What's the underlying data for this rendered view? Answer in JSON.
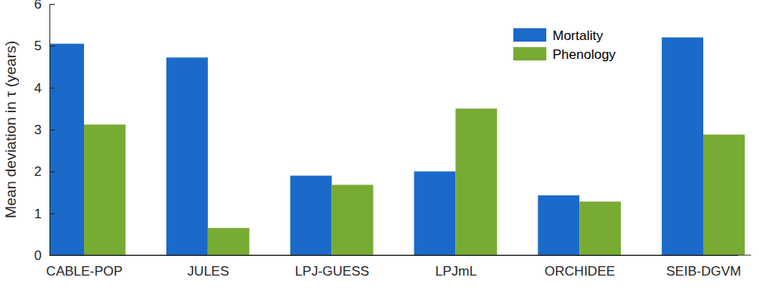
{
  "chart_data": {
    "type": "bar",
    "categories": [
      "CABLE-POP",
      "JULES",
      "LPJ-GUESS",
      "LPJmL",
      "ORCHIDEE",
      "SEIB-DGVM"
    ],
    "series": [
      {
        "name": "Mortality",
        "color": "#1b6ac9",
        "values": [
          5.05,
          4.72,
          1.9,
          2.0,
          1.43,
          5.2
        ]
      },
      {
        "name": "Phenology",
        "color": "#77ab33",
        "values": [
          3.12,
          0.65,
          1.68,
          3.5,
          1.28,
          2.88
        ]
      }
    ],
    "y_label": "Mean deviation in τ (years)",
    "ylim": [
      0,
      6
    ],
    "yticks": [
      0,
      1,
      2,
      3,
      4,
      5,
      6
    ],
    "grid": false,
    "legend": "top-right"
  }
}
